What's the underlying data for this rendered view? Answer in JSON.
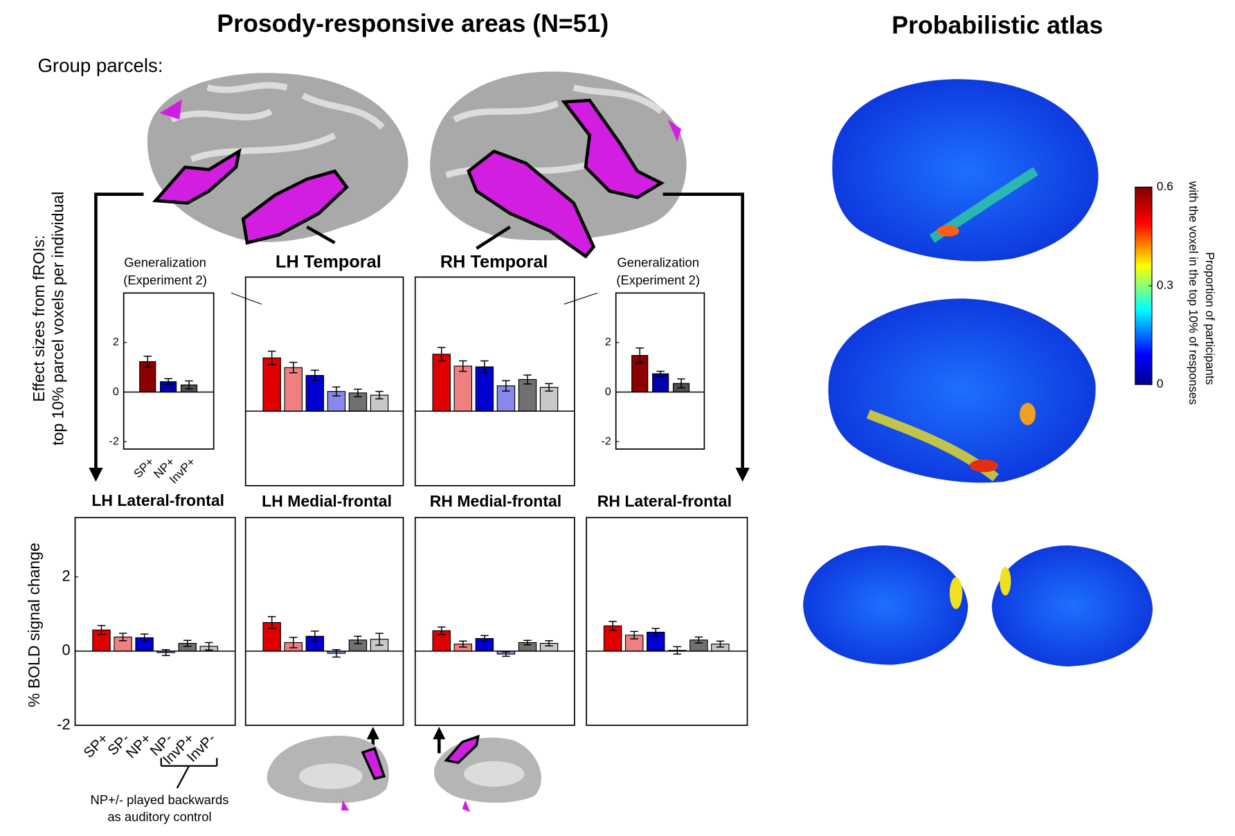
{
  "figure": {
    "title": "Prosody-responsive areas (N=51)",
    "atlas_title": "Probabilistic atlas",
    "group_parcels": "Group parcels:",
    "effect_label": [
      "Effect sizes from fROIs:",
      "top 10% parcel voxels per individual"
    ],
    "bold_label": "% BOLD signal change",
    "control_note": [
      "NP+/- played backwards",
      "as auditory control"
    ],
    "colorbar": {
      "lim": [
        0,
        0.6
      ],
      "ticks": [
        0,
        0.3,
        0.6
      ],
      "label": [
        "Proportion of participants",
        "with the voxel in the top 10% of responses"
      ]
    }
  },
  "chart_data": [
    {
      "type": "bar",
      "title": "Generalization",
      "subtitle": "(Experiment 2)",
      "categories": [
        "SP+",
        "NP+",
        "InvP+"
      ],
      "values": [
        1.23,
        0.42,
        0.29
      ],
      "errors": [
        0.22,
        0.12,
        0.16
      ],
      "colors": [
        "#8b0000",
        "#0000b0",
        "#505050"
      ],
      "ylim": [
        -2.3,
        4
      ],
      "yticks": [
        -2,
        0,
        2
      ]
    },
    {
      "type": "bar",
      "title": "LH Temporal",
      "categories": [
        null,
        null,
        null,
        null,
        null,
        null
      ],
      "values": [
        1.43,
        1.17,
        0.96,
        0.53,
        0.49,
        0.43
      ],
      "errors": [
        0.18,
        0.14,
        0.14,
        0.12,
        0.1,
        0.1
      ],
      "colors": [
        "#e00000",
        "#f08080",
        "#0000d0",
        "#8888ea",
        "#707070",
        "#c8c8c8"
      ],
      "ylim": [
        -2,
        3.6
      ]
    },
    {
      "type": "bar",
      "title": "RH Temporal",
      "categories": [
        null,
        null,
        null,
        null,
        null,
        null
      ],
      "values": [
        1.53,
        1.21,
        1.19,
        0.68,
        0.85,
        0.64
      ],
      "errors": [
        0.18,
        0.14,
        0.16,
        0.14,
        0.12,
        0.1
      ],
      "colors": [
        "#e00000",
        "#f08080",
        "#0000d0",
        "#8888ea",
        "#707070",
        "#c8c8c8"
      ],
      "ylim": [
        -2,
        3.6
      ]
    },
    {
      "type": "bar",
      "title": "Generalization",
      "subtitle": "(Experiment 2)",
      "categories": [
        null,
        null,
        null
      ],
      "values": [
        1.48,
        0.74,
        0.35
      ],
      "errors": [
        0.3,
        0.1,
        0.18
      ],
      "colors": [
        "#8b0000",
        "#0000b0",
        "#505050"
      ],
      "ylim": [
        -2.3,
        4
      ],
      "yticks": [
        -2,
        0,
        2
      ]
    },
    {
      "type": "bar",
      "title": "LH Lateral-frontal",
      "categories": [
        "SP+",
        "SP-",
        "NP+",
        "NP-",
        "InvP+",
        "InvP-"
      ],
      "values": [
        0.57,
        0.38,
        0.36,
        -0.04,
        0.21,
        0.13
      ],
      "errors": [
        0.12,
        0.1,
        0.1,
        0.08,
        0.08,
        0.1
      ],
      "colors": [
        "#e00000",
        "#f08080",
        "#0000d0",
        "#8888ea",
        "#707070",
        "#c8c8c8"
      ],
      "ylim": [
        -2,
        3.6
      ],
      "yticks": [
        -2,
        0,
        2
      ]
    },
    {
      "type": "bar",
      "title": "LH Medial-frontal",
      "categories": [
        null,
        null,
        null,
        null,
        null,
        null
      ],
      "values": [
        0.77,
        0.23,
        0.4,
        -0.06,
        0.3,
        0.32
      ],
      "errors": [
        0.16,
        0.14,
        0.14,
        0.1,
        0.1,
        0.16
      ],
      "colors": [
        "#e00000",
        "#f08080",
        "#0000d0",
        "#8888ea",
        "#707070",
        "#c8c8c8"
      ],
      "ylim": [
        -2,
        3.6
      ]
    },
    {
      "type": "bar",
      "title": "RH Medial-frontal",
      "categories": [
        null,
        null,
        null,
        null,
        null,
        null
      ],
      "values": [
        0.55,
        0.19,
        0.34,
        -0.08,
        0.23,
        0.21
      ],
      "errors": [
        0.1,
        0.08,
        0.08,
        0.06,
        0.06,
        0.07
      ],
      "colors": [
        "#e00000",
        "#f08080",
        "#0000d0",
        "#8888ea",
        "#707070",
        "#c8c8c8"
      ],
      "ylim": [
        -2,
        3.6
      ]
    },
    {
      "type": "bar",
      "title": "RH Lateral-frontal",
      "categories": [
        null,
        null,
        null,
        null,
        null,
        null
      ],
      "values": [
        0.68,
        0.43,
        0.51,
        0.02,
        0.3,
        0.19
      ],
      "errors": [
        0.12,
        0.1,
        0.1,
        0.1,
        0.08,
        0.08
      ],
      "colors": [
        "#e00000",
        "#f08080",
        "#0000d0",
        "#8888ea",
        "#707070",
        "#c8c8c8"
      ],
      "ylim": [
        -2,
        3.6
      ]
    }
  ]
}
